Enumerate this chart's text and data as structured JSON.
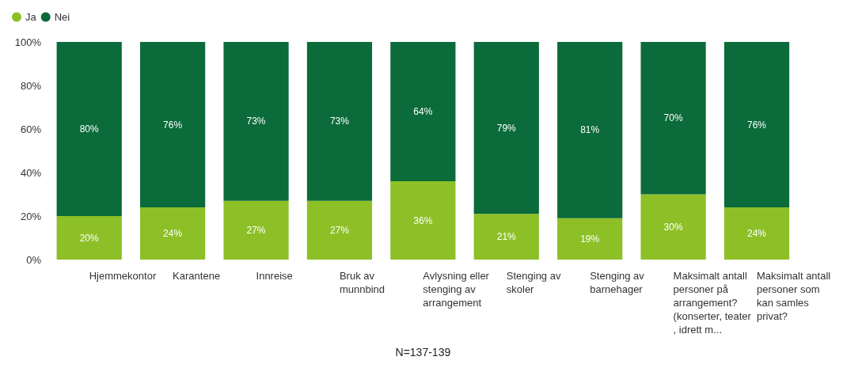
{
  "chart_data": {
    "type": "bar",
    "stacked": true,
    "xlabel": "N=137-139",
    "categories": [
      "Hjemmekontor",
      "Karantene",
      "Innreise",
      "Bruk av munnbind",
      "Avlysning eller stenging av arrangement",
      "Stenging av skoler",
      "Stenging av barnehager",
      "Maksimalt antall personer på arrangement? (konserter, teater, idrett m...",
      "Maksimalt antall personer som kan samles privat?"
    ],
    "series": [
      {
        "name": "Ja",
        "color": "#8cc026",
        "values": [
          20,
          24,
          27,
          27,
          36,
          21,
          19,
          30,
          24
        ],
        "value_labels": [
          "20%",
          "24%",
          "27%",
          "27%",
          "36%",
          "21%",
          "19%",
          "30%",
          "24%"
        ]
      },
      {
        "name": "Nei",
        "color": "#0b6b3a",
        "values": [
          80,
          76,
          73,
          73,
          64,
          79,
          81,
          70,
          76
        ],
        "value_labels": [
          "80%",
          "76%",
          "73%",
          "73%",
          "64%",
          "79%",
          "81%",
          "70%",
          "76%"
        ]
      }
    ],
    "ylim": [
      0,
      100
    ],
    "yticks": [
      {
        "value": 0,
        "label": "0%"
      },
      {
        "value": 20,
        "label": "20%"
      },
      {
        "value": 40,
        "label": "40%"
      },
      {
        "value": 60,
        "label": "60%"
      },
      {
        "value": 80,
        "label": "80%"
      },
      {
        "value": 100,
        "label": "100%"
      }
    ],
    "legend": "top left",
    "grid": false
  }
}
